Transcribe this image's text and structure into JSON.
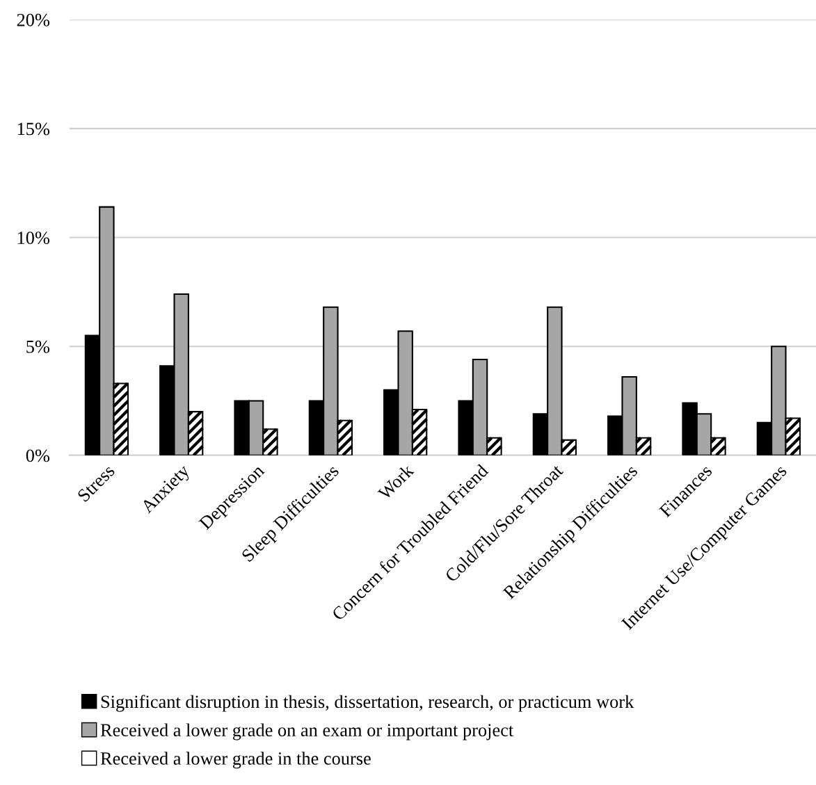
{
  "chart_data": {
    "type": "bar",
    "categories": [
      "Stress",
      "Anxiety",
      "Depression",
      "Sleep Difficulties",
      "Work",
      "Concern for Troubled Friend",
      "Cold/Flu/Sore Throat",
      "Relationship Difficulties",
      "Finances",
      "Internet Use/Computer Games"
    ],
    "series": [
      {
        "name": "Significant disruption in thesis, dissertation, research, or practicum work",
        "color": "#000000",
        "values": [
          5.5,
          4.1,
          2.5,
          2.5,
          3.0,
          2.5,
          1.9,
          1.8,
          2.4,
          1.5
        ]
      },
      {
        "name": "Received a lower grade on an exam or important project",
        "color": "#a6a6a6",
        "values": [
          11.4,
          7.4,
          2.5,
          6.8,
          5.7,
          4.4,
          6.8,
          3.6,
          1.9,
          5.0
        ]
      },
      {
        "name": "Received a lower grade in the course",
        "color": "#ffffff",
        "values": [
          3.3,
          2.0,
          1.2,
          1.6,
          2.1,
          0.8,
          0.7,
          0.8,
          0.8,
          1.7
        ]
      }
    ],
    "ylim": [
      0,
      20
    ],
    "yticks": [
      {
        "value": 0,
        "label": "0%"
      },
      {
        "value": 5,
        "label": "5%"
      },
      {
        "value": 10,
        "label": "10%"
      },
      {
        "value": 15,
        "label": "15%"
      },
      {
        "value": 20,
        "label": "20%"
      }
    ],
    "grid": "y",
    "legend": "bottom"
  }
}
